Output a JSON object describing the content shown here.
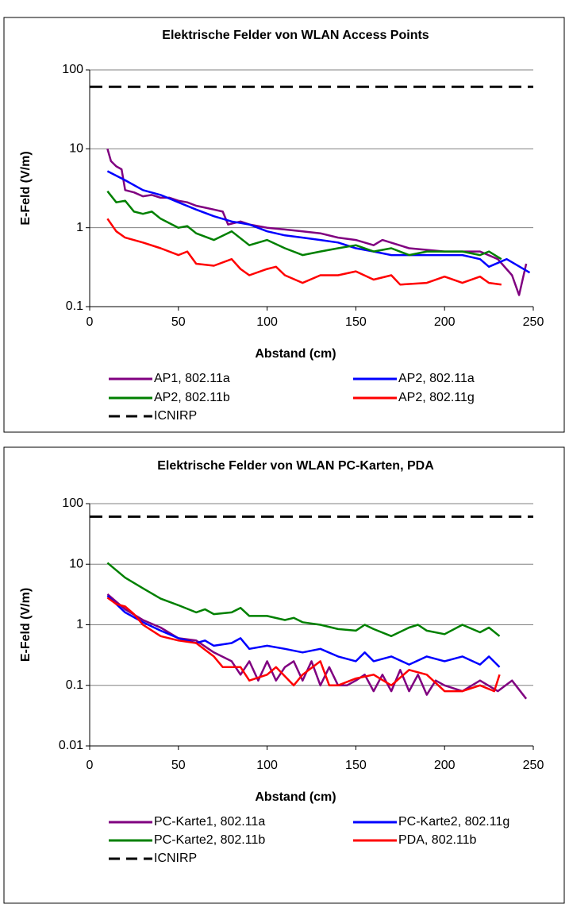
{
  "chart_data": [
    {
      "type": "line",
      "title": "Elektrische Felder von WLAN Access Points",
      "x_label": "Abstand (cm)",
      "y_label": "E-Feld (V/m)",
      "xlim": [
        0,
        250
      ],
      "xticks": [
        0,
        50,
        100,
        150,
        200,
        250
      ],
      "ylim": [
        0.1,
        100
      ],
      "yticks": [
        0.1,
        1,
        10,
        100
      ],
      "y_scale": "log",
      "grid": true,
      "series": [
        {
          "name": "AP1, 802.11a",
          "color": "#800080",
          "style": "solid",
          "x": [
            10,
            12,
            15,
            18,
            20,
            25,
            30,
            35,
            40,
            45,
            50,
            55,
            60,
            70,
            75,
            78,
            85,
            90,
            100,
            110,
            120,
            130,
            140,
            150,
            160,
            165,
            180,
            200,
            220,
            230,
            238,
            242,
            246
          ],
          "values": [
            10,
            7,
            6,
            5.5,
            3,
            2.8,
            2.5,
            2.6,
            2.4,
            2.4,
            2.2,
            2.1,
            1.9,
            1.7,
            1.6,
            1.1,
            1.2,
            1.1,
            1.0,
            0.95,
            0.9,
            0.85,
            0.75,
            0.7,
            0.6,
            0.7,
            0.55,
            0.5,
            0.5,
            0.4,
            0.25,
            0.14,
            0.35
          ]
        },
        {
          "name": "AP2, 802.11a",
          "color": "#0000ff",
          "style": "solid",
          "x": [
            10,
            20,
            30,
            40,
            50,
            60,
            70,
            80,
            90,
            100,
            110,
            120,
            130,
            140,
            150,
            160,
            170,
            180,
            190,
            200,
            210,
            220,
            225,
            235,
            248
          ],
          "values": [
            5.2,
            4,
            3,
            2.6,
            2.1,
            1.7,
            1.4,
            1.2,
            1.1,
            0.9,
            0.8,
            0.75,
            0.7,
            0.65,
            0.55,
            0.5,
            0.45,
            0.45,
            0.45,
            0.45,
            0.45,
            0.4,
            0.32,
            0.4,
            0.27
          ]
        },
        {
          "name": "AP2, 802.11b",
          "color": "#008000",
          "style": "solid",
          "x": [
            10,
            15,
            20,
            25,
            30,
            35,
            40,
            50,
            55,
            60,
            70,
            80,
            90,
            100,
            110,
            120,
            130,
            140,
            150,
            160,
            170,
            180,
            190,
            200,
            210,
            220,
            225,
            232
          ],
          "values": [
            2.9,
            2.1,
            2.2,
            1.6,
            1.5,
            1.6,
            1.3,
            1.0,
            1.05,
            0.85,
            0.7,
            0.9,
            0.6,
            0.7,
            0.55,
            0.45,
            0.5,
            0.55,
            0.6,
            0.5,
            0.55,
            0.45,
            0.5,
            0.5,
            0.5,
            0.45,
            0.5,
            0.4
          ]
        },
        {
          "name": "AP2, 802.11g",
          "color": "#ff0000",
          "style": "solid",
          "x": [
            10,
            15,
            20,
            30,
            40,
            50,
            55,
            60,
            70,
            80,
            85,
            90,
            100,
            105,
            110,
            120,
            130,
            140,
            150,
            160,
            170,
            175,
            190,
            200,
            210,
            220,
            225,
            232
          ],
          "values": [
            1.3,
            0.9,
            0.75,
            0.65,
            0.55,
            0.45,
            0.5,
            0.35,
            0.33,
            0.4,
            0.3,
            0.25,
            0.3,
            0.32,
            0.25,
            0.2,
            0.25,
            0.25,
            0.28,
            0.22,
            0.25,
            0.19,
            0.2,
            0.24,
            0.2,
            0.24,
            0.2,
            0.19
          ]
        },
        {
          "name": "ICNIRP",
          "color": "#000000",
          "style": "dashed",
          "x": [
            0,
            250
          ],
          "values": [
            61,
            61
          ]
        }
      ]
    },
    {
      "type": "line",
      "title": "Elektrische Felder von WLAN PC-Karten, PDA",
      "x_label": "Abstand (cm)",
      "y_label": "E-Feld (V/m)",
      "xlim": [
        0,
        250
      ],
      "xticks": [
        0,
        50,
        100,
        150,
        200,
        250
      ],
      "ylim": [
        0.01,
        100
      ],
      "yticks": [
        0.01,
        0.1,
        1,
        10,
        100
      ],
      "y_scale": "log",
      "grid": true,
      "series": [
        {
          "name": "PC-Karte1, 802.11a",
          "color": "#800080",
          "style": "solid",
          "x": [
            10,
            20,
            30,
            40,
            50,
            60,
            70,
            80,
            85,
            90,
            95,
            100,
            105,
            110,
            115,
            120,
            125,
            130,
            135,
            140,
            145,
            150,
            155,
            160,
            165,
            170,
            175,
            180,
            185,
            190,
            195,
            200,
            210,
            220,
            230,
            238,
            246
          ],
          "values": [
            3.2,
            1.8,
            1.2,
            0.9,
            0.6,
            0.55,
            0.35,
            0.25,
            0.15,
            0.25,
            0.12,
            0.25,
            0.12,
            0.2,
            0.25,
            0.12,
            0.25,
            0.1,
            0.2,
            0.1,
            0.1,
            0.12,
            0.15,
            0.08,
            0.15,
            0.08,
            0.18,
            0.08,
            0.15,
            0.07,
            0.12,
            0.1,
            0.08,
            0.12,
            0.08,
            0.12,
            0.06
          ]
        },
        {
          "name": "PC-Karte2, 802.11g",
          "color": "#0000ff",
          "style": "solid",
          "x": [
            10,
            20,
            30,
            40,
            50,
            60,
            65,
            70,
            80,
            85,
            90,
            100,
            110,
            120,
            130,
            140,
            150,
            155,
            160,
            170,
            180,
            190,
            200,
            210,
            220,
            225,
            231
          ],
          "values": [
            3,
            1.6,
            1.1,
            0.8,
            0.6,
            0.5,
            0.55,
            0.45,
            0.5,
            0.6,
            0.4,
            0.45,
            0.4,
            0.35,
            0.4,
            0.3,
            0.25,
            0.35,
            0.25,
            0.3,
            0.22,
            0.3,
            0.25,
            0.3,
            0.22,
            0.3,
            0.2
          ]
        },
        {
          "name": "PC-Karte2, 802.11b",
          "color": "#008000",
          "style": "solid",
          "x": [
            10,
            20,
            30,
            40,
            50,
            60,
            65,
            70,
            80,
            85,
            90,
            100,
            110,
            115,
            120,
            130,
            140,
            150,
            155,
            160,
            170,
            180,
            185,
            190,
            200,
            210,
            220,
            225,
            231
          ],
          "values": [
            10.5,
            6,
            4,
            2.7,
            2.1,
            1.6,
            1.8,
            1.5,
            1.6,
            1.9,
            1.4,
            1.4,
            1.2,
            1.3,
            1.1,
            1.0,
            0.85,
            0.8,
            1.0,
            0.85,
            0.65,
            0.9,
            1.0,
            0.8,
            0.7,
            1.0,
            0.75,
            0.9,
            0.65
          ]
        },
        {
          "name": "PDA, 802.11b",
          "color": "#ff0000",
          "style": "solid",
          "x": [
            10,
            15,
            20,
            25,
            30,
            40,
            50,
            60,
            70,
            75,
            85,
            90,
            100,
            105,
            115,
            120,
            130,
            135,
            140,
            150,
            160,
            170,
            180,
            190,
            200,
            210,
            220,
            228,
            231
          ],
          "values": [
            2.8,
            2.2,
            2,
            1.5,
            1.0,
            0.65,
            0.55,
            0.5,
            0.3,
            0.2,
            0.2,
            0.12,
            0.15,
            0.2,
            0.1,
            0.15,
            0.25,
            0.1,
            0.1,
            0.13,
            0.15,
            0.1,
            0.18,
            0.15,
            0.08,
            0.08,
            0.1,
            0.08,
            0.15
          ]
        },
        {
          "name": "ICNIRP",
          "color": "#000000",
          "style": "dashed",
          "x": [
            0,
            250
          ],
          "values": [
            61,
            61
          ]
        }
      ]
    }
  ]
}
